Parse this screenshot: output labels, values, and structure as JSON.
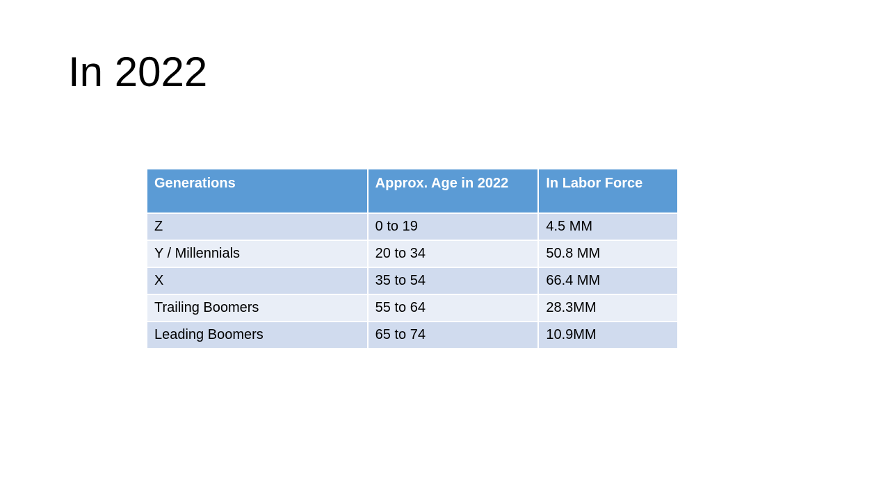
{
  "slide": {
    "title": "In 2022"
  },
  "table": {
    "headers": [
      "Generations",
      "Approx. Age in 2022",
      "In Labor Force"
    ],
    "rows": [
      [
        "Z",
        "0 to 19",
        "4.5 MM"
      ],
      [
        "Y / Millennials",
        "20 to 34",
        "50.8 MM"
      ],
      [
        "X",
        "35 to 54",
        "66.4 MM"
      ],
      [
        "Trailing Boomers",
        "55 to 64",
        "28.3MM"
      ],
      [
        "Leading Boomers",
        "65 to 74",
        "10.9MM"
      ]
    ]
  },
  "colors": {
    "header_fill": "#5b9bd5",
    "row_fill_dark": "#d0dbee",
    "row_fill_light": "#e9eef7"
  }
}
